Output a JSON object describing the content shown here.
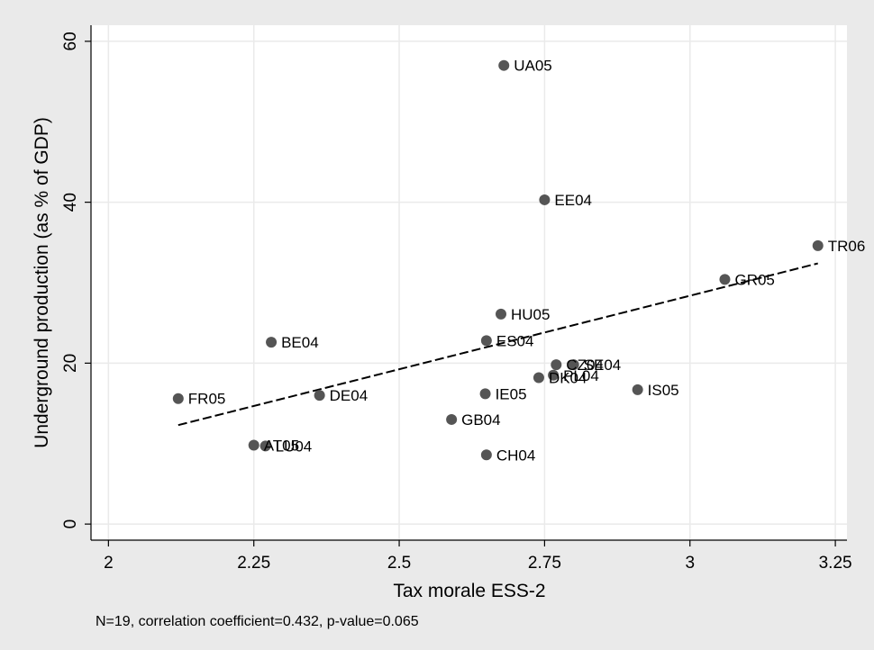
{
  "chart_data": {
    "type": "scatter",
    "xlabel": "Tax morale ESS-2",
    "ylabel": "Underground production (as % of GDP)",
    "note": "N=19, correlation coefficient=0.432, p-value=0.065",
    "xlim": [
      1.97,
      3.27
    ],
    "ylim": [
      -2,
      62
    ],
    "xticks": [
      2,
      2.25,
      2.5,
      2.75,
      3,
      3.25
    ],
    "xtick_labels": [
      "2",
      "2.25",
      "2.5",
      "2.75",
      "3",
      "3.25"
    ],
    "yticks": [
      0,
      20,
      40,
      60
    ],
    "ytick_labels": [
      "0",
      "20",
      "40",
      "60"
    ],
    "grid": true,
    "legend": "none",
    "colors": {
      "outer_background": "#eaeaea",
      "plot_background": "#ffffff",
      "grid": "#eaeaea",
      "marker": "#555555",
      "fit_line": "#000000"
    },
    "points": [
      {
        "label": "UA05",
        "x": 2.68,
        "y": 57.0
      },
      {
        "label": "EE04",
        "x": 2.75,
        "y": 40.3
      },
      {
        "label": "TR06",
        "x": 3.22,
        "y": 34.6
      },
      {
        "label": "GR05",
        "x": 3.06,
        "y": 30.4
      },
      {
        "label": "HU05",
        "x": 2.675,
        "y": 26.1
      },
      {
        "label": "BE04",
        "x": 2.28,
        "y": 22.6
      },
      {
        "label": "ES04",
        "x": 2.65,
        "y": 22.8
      },
      {
        "label": "CZ04",
        "x": 2.77,
        "y": 19.8
      },
      {
        "label": "SE04",
        "x": 2.8,
        "y": 19.8
      },
      {
        "label": "DK04",
        "x": 2.74,
        "y": 18.2
      },
      {
        "label": "PL04",
        "x": 2.765,
        "y": 18.5
      },
      {
        "label": "IE05",
        "x": 2.648,
        "y": 16.2
      },
      {
        "label": "IS05",
        "x": 2.91,
        "y": 16.7
      },
      {
        "label": "FR05",
        "x": 2.12,
        "y": 15.6
      },
      {
        "label": "DE04",
        "x": 2.363,
        "y": 16.0
      },
      {
        "label": "GB04",
        "x": 2.59,
        "y": 13.0
      },
      {
        "label": "AT05",
        "x": 2.25,
        "y": 9.8
      },
      {
        "label": "LU04",
        "x": 2.27,
        "y": 9.7
      },
      {
        "label": "CH04",
        "x": 2.65,
        "y": 8.6
      }
    ],
    "fit_line": {
      "x": [
        2.12,
        3.22
      ],
      "y": [
        12.3,
        32.4
      ]
    }
  }
}
